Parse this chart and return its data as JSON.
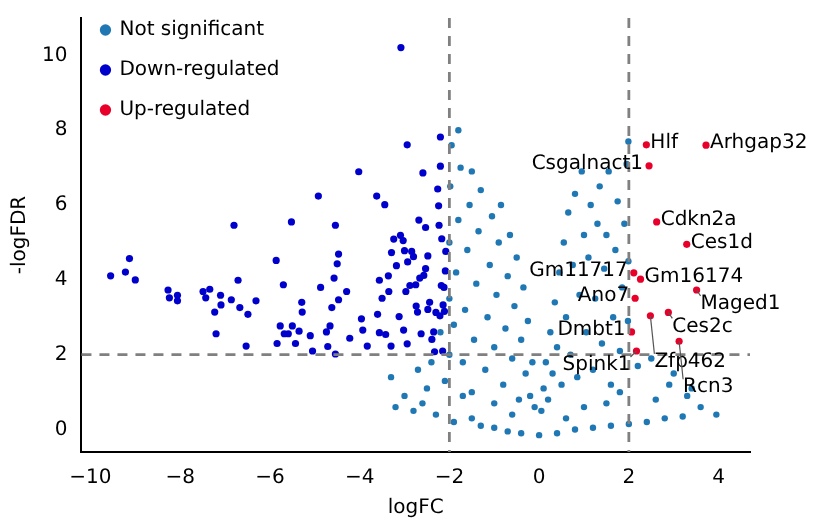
{
  "chart_data": {
    "type": "scatter",
    "xlabel": "logFC",
    "ylabel": "-logFDR",
    "xlim": [
      -10.2,
      4.7
    ],
    "ylim": [
      -0.6,
      11
    ],
    "xticks": [
      -10,
      -8,
      -6,
      -4,
      -2,
      0,
      2,
      4
    ],
    "yticks": [
      0,
      2,
      4,
      6,
      8,
      10
    ],
    "grid": false,
    "legend": "top left",
    "marker": "circle",
    "ref_lines": [
      {
        "axis": "x",
        "value": -2,
        "color": "#808080",
        "line_style": "dashed"
      },
      {
        "axis": "x",
        "value": 2,
        "color": "#808080",
        "line_style": "dashed"
      },
      {
        "axis": "y",
        "value": 2,
        "color": "#808080",
        "line_style": "dashed"
      }
    ],
    "series": [
      {
        "name": "Not significant",
        "color": "#1f77b4",
        "x": [
          -3.2,
          -3.0,
          -2.8,
          -2.5,
          -2.6,
          -2.3,
          -2.1,
          -1.9,
          -1.7,
          -1.5,
          -1.3,
          -1.0,
          -0.7,
          -0.4,
          0,
          0.4,
          0.8,
          1.2,
          1.6,
          2.0,
          2.4,
          2.8,
          3.2,
          3.6,
          3.95,
          3.3,
          2.9,
          2.6,
          3.0,
          2.2,
          2.5,
          3.4,
          -2.0,
          -2.0,
          -2.0,
          -1.98,
          -1.95,
          -1.9,
          -1.85,
          -1.8,
          -1.75,
          -1.7,
          -1.65,
          -1.6,
          -1.55,
          -1.5,
          -1.45,
          -1.4,
          -1.35,
          -1.3,
          -1.2,
          -1.15,
          -1.1,
          -1.05,
          -1.0,
          -0.95,
          -0.9,
          -0.85,
          -0.8,
          -0.75,
          -0.7,
          -0.65,
          -0.6,
          -0.55,
          -0.5,
          -0.45,
          -0.4,
          -0.35,
          -0.3,
          -0.25,
          -0.2,
          -0.15,
          -0.1,
          -1.5,
          -1.0,
          -0.6,
          -2.4,
          -2.2,
          -2.7,
          -3.3,
          -1.8,
          0.05,
          0.1,
          0.15,
          0.2,
          0.25,
          0.3,
          0.35,
          0.4,
          0.45,
          0.5,
          0.55,
          0.6,
          0.65,
          0.7,
          0.75,
          0.8,
          0.85,
          0.9,
          0.95,
          1.0,
          1.05,
          1.1,
          1.15,
          1.2,
          1.25,
          1.3,
          1.35,
          1.4,
          1.45,
          1.5,
          1.55,
          1.6,
          1.65,
          1.7,
          1.75,
          1.8,
          1.85,
          1.9,
          1.95,
          1.98,
          1.99,
          1.99,
          1.0,
          1.5,
          0.6,
          1.8
        ],
        "values": [
          0.6,
          0.9,
          0.5,
          1.1,
          0.7,
          0.4,
          1.3,
          0.2,
          0.9,
          0.3,
          0.1,
          0.05,
          -0.05,
          -0.1,
          -0.15,
          -0.1,
          0,
          0.05,
          0.1,
          0.15,
          0.2,
          0.3,
          0.35,
          0.6,
          0.4,
          0.9,
          1.2,
          0.8,
          1.5,
          1.7,
          1.9,
          1.1,
          2.0,
          3.5,
          5.0,
          6.5,
          7.6,
          2.8,
          4.2,
          5.6,
          7.0,
          1.8,
          3.2,
          4.8,
          6.0,
          6.9,
          2.4,
          3.9,
          5.3,
          6.4,
          1.6,
          3.0,
          4.4,
          5.7,
          2.2,
          3.6,
          5.0,
          6.0,
          1.2,
          2.7,
          4.1,
          5.2,
          1.9,
          3.3,
          4.6,
          0.8,
          2.4,
          3.8,
          1.5,
          2.9,
          0.9,
          1.8,
          0.6,
          1.0,
          0.7,
          0.4,
          1.8,
          2.6,
          1.6,
          1.4,
          8.0,
          0.5,
          1.1,
          1.8,
          0.8,
          2.6,
          1.5,
          3.4,
          2.2,
          4.2,
          1.2,
          5.0,
          3.0,
          5.8,
          2.0,
          4.4,
          6.3,
          1.4,
          3.6,
          6.9,
          5.2,
          2.6,
          4.6,
          6.0,
          1.6,
          3.5,
          5.5,
          6.5,
          2.3,
          4.3,
          5.2,
          6.9,
          1.2,
          3.0,
          4.8,
          6.1,
          2.1,
          3.8,
          5.5,
          7.1,
          2.9,
          4.5,
          7.7,
          0.6,
          0.7,
          0.3,
          1.0
        ]
      },
      {
        "name": "Down-regulated",
        "color": "#0000cd",
        "x": [
          -9.55,
          -9.22,
          -9.13,
          -9.0,
          -8.27,
          -8.24,
          -8.06,
          -8.06,
          -7.49,
          -7.43,
          -7.34,
          -7.23,
          -7.2,
          -7.1,
          -7.09,
          -6.86,
          -6.8,
          -6.71,
          -6.67,
          -6.53,
          -6.49,
          -6.31,
          -5.86,
          -5.84,
          -5.77,
          -5.7,
          -5.68,
          -5.59,
          -5.52,
          -5.5,
          -5.43,
          -5.35,
          -5.29,
          -5.28,
          -5.1,
          -5.05,
          -4.92,
          -4.87,
          -4.74,
          -4.71,
          -4.66,
          -4.62,
          -4.57,
          -4.54,
          -4.54,
          -4.5,
          -4.47,
          -4.47,
          -4.29,
          -4.22,
          -4.02,
          -3.96,
          -3.93,
          -3.83,
          -3.62,
          -3.6,
          -3.56,
          -3.56,
          -3.5,
          -3.44,
          -3.42,
          -3.36,
          -3.35,
          -3.3,
          -3.29,
          -3.24,
          -3.18,
          -3.12,
          -3.09,
          -3.08,
          -3.03,
          -3.02,
          -3.0,
          -2.97,
          -2.94,
          -2.94,
          -2.93,
          -2.88,
          -2.84,
          -2.8,
          -2.75,
          -2.74,
          -2.71,
          -2.68,
          -2.66,
          -2.63,
          -2.59,
          -2.57,
          -2.53,
          -2.53,
          -2.48,
          -2.48,
          -2.44,
          -2.39,
          -2.35,
          -2.33,
          -2.3,
          -2.26,
          -2.24,
          -2.23,
          -2.21,
          -2.2,
          -2.2,
          -2.18,
          -2.17,
          -2.15,
          -2.14,
          -2.12,
          -2.11,
          -2.09,
          -2.08
        ],
        "values": [
          4.11,
          4.21,
          4.57,
          4.0,
          3.73,
          3.52,
          3.59,
          3.44,
          3.69,
          3.52,
          3.75,
          3.14,
          2.56,
          3.59,
          3.33,
          3.47,
          5.46,
          3.99,
          3.26,
          2.23,
          3.08,
          3.44,
          4.52,
          2.3,
          2.77,
          3.87,
          2.56,
          2.56,
          5.55,
          2.77,
          2.3,
          2.63,
          3.4,
          3.14,
          2.51,
          2.1,
          6.24,
          3.8,
          2.61,
          2.22,
          2.77,
          3.26,
          4.05,
          5.46,
          2.02,
          4.43,
          4.69,
          3.47,
          3.69,
          2.44,
          6.89,
          2.96,
          2.66,
          2.23,
          6.24,
          3.08,
          3.99,
          2.59,
          3.51,
          6.01,
          2.54,
          4.11,
          3.69,
          2.23,
          4.73,
          5.09,
          4.38,
          3.02,
          5.19,
          10.21,
          5.05,
          2.66,
          4.78,
          3.69,
          7.61,
          2.29,
          4.48,
          3.85,
          4.76,
          4.62,
          3.87,
          3.3,
          3.14,
          5.6,
          4.05,
          2.56,
          6.86,
          4.12,
          5.4,
          4.3,
          4.64,
          3.21,
          3.4,
          2.41,
          2.61,
          2.08,
          3.13,
          6.43,
          5.98,
          5.46,
          3.04,
          7.82,
          7.04,
          3.85,
          5.1,
          2.1,
          3.33,
          3.8,
          3.16,
          4.24,
          4.76
        ]
      },
      {
        "name": "Up-regulated",
        "color": "#e8002a",
        "x": [
          2.39,
          2.45,
          3.72,
          2.62,
          3.29,
          2.11,
          2.26,
          3.51,
          2.14,
          2.48,
          2.88,
          2.06,
          3.12,
          2.17
        ],
        "values": [
          7.61,
          7.05,
          7.6,
          5.55,
          4.95,
          4.19,
          4.02,
          3.73,
          3.51,
          3.04,
          3.13,
          2.61,
          2.36,
          2.1
        ]
      }
    ],
    "annotations": [
      {
        "text": "Hlf",
        "x": 2.39,
        "y": 7.61
      },
      {
        "text": "Csgalnact1",
        "x": 2.45,
        "y": 7.05
      },
      {
        "text": "Arhgap32",
        "x": 3.72,
        "y": 7.6
      },
      {
        "text": "Cdkn2a",
        "x": 2.62,
        "y": 5.55
      },
      {
        "text": "Ces1d",
        "x": 3.29,
        "y": 4.95
      },
      {
        "text": "Gm11717",
        "x": 2.11,
        "y": 4.19
      },
      {
        "text": "Gm16174",
        "x": 2.26,
        "y": 4.02
      },
      {
        "text": "Maged1",
        "x": 3.51,
        "y": 3.73
      },
      {
        "text": "Ano7",
        "x": 2.14,
        "y": 3.51
      },
      {
        "text": "Zfp462",
        "x": 2.48,
        "y": 3.04
      },
      {
        "text": "Ces2c",
        "x": 2.88,
        "y": 3.13
      },
      {
        "text": "Dmbt1",
        "x": 2.06,
        "y": 2.61
      },
      {
        "text": "Rcn3",
        "x": 3.12,
        "y": 2.36
      },
      {
        "text": "Spink1",
        "x": 2.17,
        "y": 2.1
      }
    ]
  }
}
